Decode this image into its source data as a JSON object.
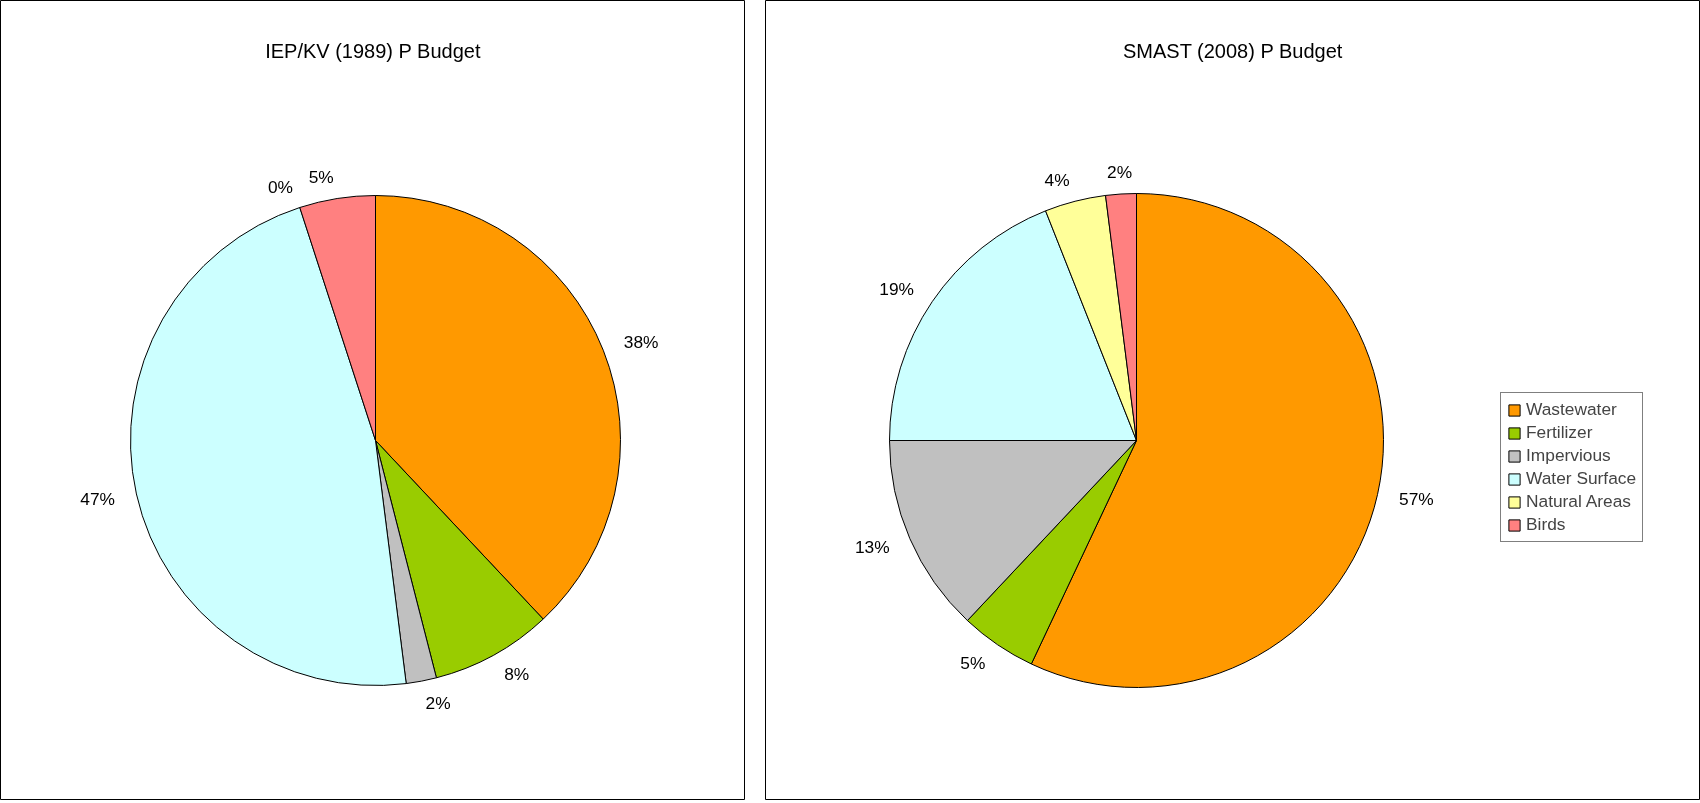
{
  "chart_data": [
    {
      "type": "pie",
      "title": "IEP/KV (1989) P Budget",
      "categories": [
        null,
        null,
        null,
        null,
        null,
        null
      ],
      "values": [
        38,
        8,
        2,
        47,
        0,
        5
      ],
      "colors": [
        "#ff9900",
        "#99cc00",
        "#c0c0c0",
        "#ccffff",
        "#ffff99",
        "#ff8080"
      ],
      "value_labels": [
        "38%",
        "8%",
        "2%",
        "47%",
        "0%",
        "5%"
      ]
    },
    {
      "type": "pie",
      "title": "SMAST (2008) P Budget",
      "categories": [
        "Wastewater",
        "Fertilizer",
        "Impervious",
        "Water Surface",
        "Natural Areas",
        "Birds"
      ],
      "values": [
        57,
        5,
        13,
        19,
        4,
        2
      ],
      "colors": [
        "#ff9900",
        "#99cc00",
        "#c0c0c0",
        "#ccffff",
        "#ffff99",
        "#ff8080"
      ],
      "value_labels": [
        "57%",
        "5%",
        "13%",
        "19%",
        "4%",
        "2%"
      ],
      "legend": "right"
    }
  ]
}
